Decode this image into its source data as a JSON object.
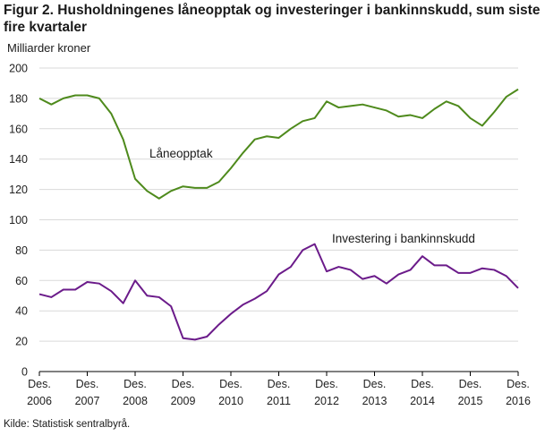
{
  "title": "Figur 2. Husholdningenes låneopptak og investeringer i bankinnskudd, sum siste fire kvartaler",
  "source": "Kilde: Statistisk sentralbyrå.",
  "colors": {
    "laneopptak": "#4e8a1c",
    "investering": "#6b1b8a",
    "grid": "#d9d9d9",
    "axis": "#000000"
  },
  "chart_data": {
    "type": "line",
    "ylabel": "Milliarder  kroner",
    "ylim": [
      0,
      200
    ],
    "yticks": [
      0,
      20,
      40,
      60,
      80,
      100,
      120,
      140,
      160,
      180,
      200
    ],
    "xticks": [
      {
        "line1": "Des.",
        "line2": "2006",
        "q": 0
      },
      {
        "line1": "Des.",
        "line2": "2007",
        "q": 4
      },
      {
        "line1": "Des.",
        "line2": "2008",
        "q": 8
      },
      {
        "line1": "Des.",
        "line2": "2009",
        "q": 12
      },
      {
        "line1": "Des.",
        "line2": "2010",
        "q": 16
      },
      {
        "line1": "Des.",
        "line2": "2011",
        "q": 20
      },
      {
        "line1": "Des.",
        "line2": "2012",
        "q": 24
      },
      {
        "line1": "Des.",
        "line2": "2013",
        "q": 28
      },
      {
        "line1": "Des.",
        "line2": "2014",
        "q": 32
      },
      {
        "line1": "Des.",
        "line2": "2015",
        "q": 36
      },
      {
        "line1": "Des.",
        "line2": "2016",
        "q": 40
      }
    ],
    "series": [
      {
        "name": "Låneopptak",
        "color_key": "laneopptak",
        "values": [
          180,
          176,
          180,
          182,
          182,
          180,
          170,
          153,
          127,
          119,
          114,
          119,
          122,
          121,
          121,
          125,
          134,
          144,
          153,
          155,
          154,
          160,
          165,
          167,
          178,
          174,
          175,
          176,
          174,
          172,
          168,
          169,
          167,
          173,
          178,
          175,
          167,
          162,
          171,
          181,
          186
        ]
      },
      {
        "name": "Investering  i bankinnskudd",
        "color_key": "investering",
        "values": [
          51,
          49,
          54,
          54,
          59,
          58,
          53,
          45,
          60,
          50,
          49,
          43,
          22,
          21,
          23,
          31,
          38,
          44,
          48,
          53,
          64,
          69,
          80,
          84,
          66,
          69,
          67,
          61,
          63,
          58,
          64,
          67,
          76,
          70,
          70,
          65,
          65,
          68,
          67,
          63,
          55
        ]
      }
    ]
  }
}
